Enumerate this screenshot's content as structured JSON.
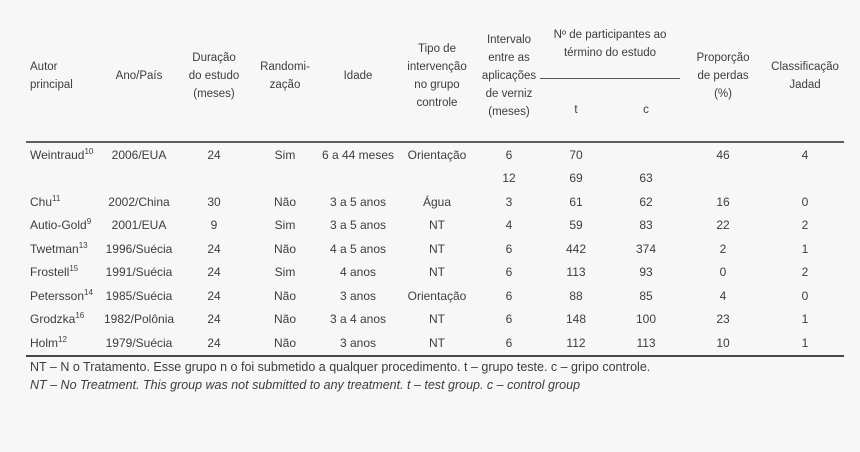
{
  "table": {
    "headers": {
      "autor": "Autor\nprincipal",
      "ano_pais": "Ano/País",
      "duracao": "Duração\ndo estudo\n(meses)",
      "randomizacao": "Randomi-\nzação",
      "idade": "Idade",
      "tipo_intervencao": "Tipo de\nintervenção\nno grupo\ncontrole",
      "intervalo": "Intervalo\nentre as\naplicações\nde verniz\n(meses)",
      "participantes_group": "Nº de participantes ao\ntérmino do estudo",
      "col_t": "t",
      "col_c": "c",
      "proporcao": "Proporção\nde perdas\n(%)",
      "classificacao": "Classificação\nJadad"
    },
    "rows": [
      {
        "autor": "Weintraud",
        "ref": "10",
        "ano_pais": "2006/EUA",
        "duracao": "24",
        "randomizacao": "Sim",
        "idade": "6 a 44 meses",
        "tipo": "Orientação",
        "intervalo": "6",
        "t": "70",
        "c": "",
        "perdas": "46",
        "jadad": "4"
      },
      {
        "autor": "",
        "ref": "",
        "ano_pais": "",
        "duracao": "",
        "randomizacao": "",
        "idade": "",
        "tipo": "",
        "intervalo": "12",
        "t": "69",
        "c": "63",
        "perdas": "",
        "jadad": ""
      },
      {
        "autor": "Chu",
        "ref": "11",
        "ano_pais": "2002/China",
        "duracao": "30",
        "randomizacao": "Não",
        "idade": "3 a 5 anos",
        "tipo": "Água",
        "intervalo": "3",
        "t": "61",
        "c": "62",
        "perdas": "16",
        "jadad": "0"
      },
      {
        "autor": "Autio-Gold",
        "ref": "9",
        "ano_pais": "2001/EUA",
        "duracao": "9",
        "randomizacao": "Sim",
        "idade": "3 a 5 anos",
        "tipo": "NT",
        "intervalo": "4",
        "t": "59",
        "c": "83",
        "perdas": "22",
        "jadad": "2"
      },
      {
        "autor": "Twetman",
        "ref": "13",
        "ano_pais": "1996/Suécia",
        "duracao": "24",
        "randomizacao": "Não",
        "idade": "4 a 5 anos",
        "tipo": "NT",
        "intervalo": "6",
        "t": "442",
        "c": "374",
        "perdas": "2",
        "jadad": "1"
      },
      {
        "autor": "Frostell",
        "ref": "15",
        "ano_pais": "1991/Suécia",
        "duracao": "24",
        "randomizacao": "Sim",
        "idade": "4 anos",
        "tipo": "NT",
        "intervalo": "6",
        "t": "113",
        "c": "93",
        "perdas": "0",
        "jadad": "2"
      },
      {
        "autor": "Petersson",
        "ref": "14",
        "ano_pais": "1985/Suécia",
        "duracao": "24",
        "randomizacao": "Não",
        "idade": "3 anos",
        "tipo": "Orientação",
        "intervalo": "6",
        "t": "88",
        "c": "85",
        "perdas": "4",
        "jadad": "0"
      },
      {
        "autor": "Grodzka",
        "ref": "16",
        "ano_pais": "1982/Polônia",
        "duracao": "24",
        "randomizacao": "Não",
        "idade": "3 a 4 anos",
        "tipo": "NT",
        "intervalo": "6",
        "t": "148",
        "c": "100",
        "perdas": "23",
        "jadad": "1"
      },
      {
        "autor": "Holm",
        "ref": "12",
        "ano_pais": "1979/Suécia",
        "duracao": "24",
        "randomizacao": "Não",
        "idade": "3 anos",
        "tipo": "NT",
        "intervalo": "6",
        "t": "112",
        "c": "113",
        "perdas": "10",
        "jadad": "1"
      }
    ],
    "footnotes": {
      "pt": "NT – N o Tratamento. Esse grupo n o foi submetido a qualquer procedimento. t – grupo teste. c – gripo controle.",
      "en": "NT – No Treatment. This group was not submitted to any treatment. t – test group. c – control group"
    }
  },
  "colors": {
    "background": "#f7f7f7",
    "text": "#3d3d3d",
    "rule_header": "#5e5e5e",
    "rule_bottom": "#474747"
  }
}
